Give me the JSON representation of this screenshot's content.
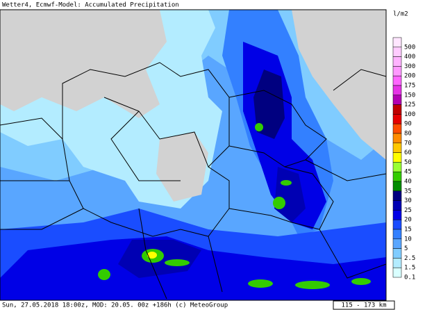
{
  "header": {
    "title": "Wetter4, Ecmwf-Model: Accumulated Precipitation"
  },
  "legend": {
    "unit": "l/m2",
    "entries": [
      {
        "label": "500",
        "color": "#ffe6ff"
      },
      {
        "label": "400",
        "color": "#ffccff"
      },
      {
        "label": "300",
        "color": "#ffb3ff"
      },
      {
        "label": "200",
        "color": "#ff99ff"
      },
      {
        "label": "175",
        "color": "#ff66ff"
      },
      {
        "label": "150",
        "color": "#e633e6"
      },
      {
        "label": "125",
        "color": "#b300b3"
      },
      {
        "label": "100",
        "color": "#c00000"
      },
      {
        "label": "90",
        "color": "#e60000"
      },
      {
        "label": "80",
        "color": "#ff4d00"
      },
      {
        "label": "70",
        "color": "#ff8c00"
      },
      {
        "label": "60",
        "color": "#ffc800"
      },
      {
        "label": "50",
        "color": "#ffff00"
      },
      {
        "label": "45",
        "color": "#99ff33"
      },
      {
        "label": "40",
        "color": "#33cc00"
      },
      {
        "label": "35",
        "color": "#008c00"
      },
      {
        "label": "30",
        "color": "#000080"
      },
      {
        "label": "25",
        "color": "#0000b3"
      },
      {
        "label": "20",
        "color": "#0000e6"
      },
      {
        "label": "15",
        "color": "#1a4dff"
      },
      {
        "label": "10",
        "color": "#3380ff"
      },
      {
        "label": "5",
        "color": "#59a6ff"
      },
      {
        "label": "2.5",
        "color": "#80ccff"
      },
      {
        "label": "1.5",
        "color": "#b3ecff"
      },
      {
        "label": "0.1",
        "color": "#d9ffff"
      }
    ]
  },
  "footer": {
    "text": "Sun, 27.05.2018 18:00z, MOD: 20.05. 00z +186h (c) MeteoGroup",
    "scale": "115 - 173 km"
  }
}
